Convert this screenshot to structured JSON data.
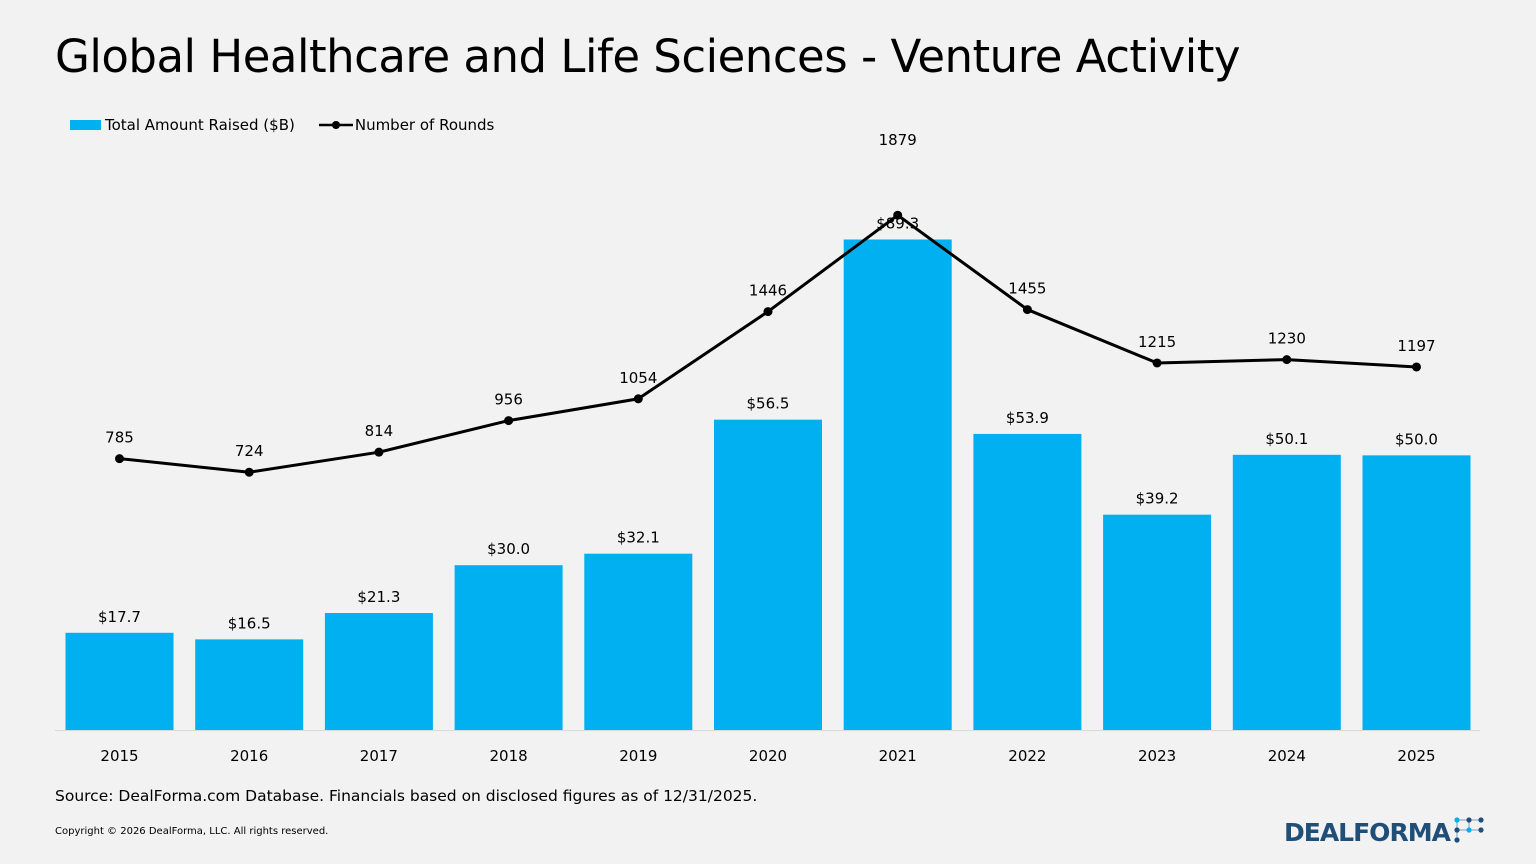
{
  "title": "Global Healthcare and Life Sciences - Venture Activity",
  "source": "Source: DealForma.com Database. Financials based on disclosed figures as of 12/31/2025.",
  "copyright": "Copyright © 2026 DealForma, LLC. All rights reserved.",
  "logo": {
    "text": "DEALFORMA",
    "icon": "network-nodes-icon"
  },
  "colors": {
    "bar": "#00b0f0",
    "line": "#000000",
    "logo": "#1f4e79"
  },
  "chart_data": {
    "type": "bar",
    "categories": [
      "2015",
      "2016",
      "2017",
      "2018",
      "2019",
      "2020",
      "2021",
      "2022",
      "2023",
      "2024",
      "2025"
    ],
    "series": [
      {
        "name": "Total Amount Raised ($B)",
        "type": "bar",
        "values": [
          17.7,
          16.5,
          21.3,
          30.0,
          32.1,
          56.5,
          89.3,
          53.9,
          39.2,
          50.1,
          50.0
        ],
        "labels": [
          "$17.7",
          "$16.5",
          "$21.3",
          "$30.0",
          "$32.1",
          "$56.5",
          "$89.3",
          "$53.9",
          "$39.2",
          "$50.1",
          "$50.0"
        ]
      },
      {
        "name": "Number of Rounds",
        "type": "line",
        "values": [
          785,
          724,
          814,
          956,
          1054,
          1446,
          1879,
          1455,
          1215,
          1230,
          1197
        ],
        "labels": [
          "785",
          "724",
          "814",
          "956",
          "1054",
          "1446",
          "1879",
          "1455",
          "1215",
          "1230",
          "1197"
        ]
      }
    ],
    "legend_position": "top-left",
    "grid": false
  }
}
